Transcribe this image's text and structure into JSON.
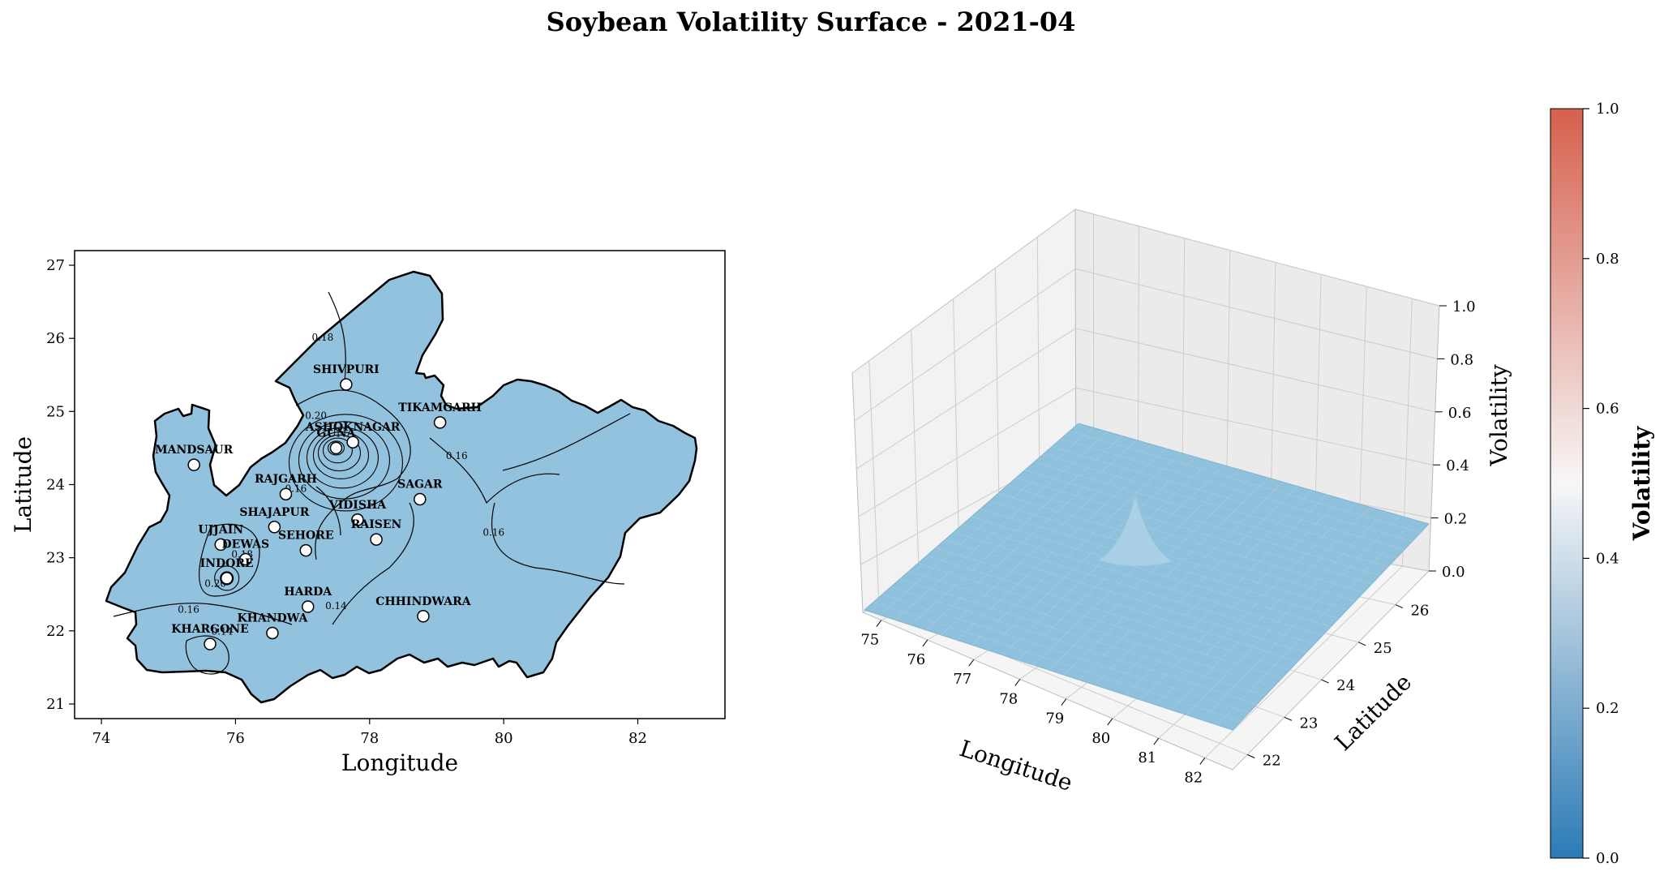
{
  "title": "Soybean Volatility Surface - 2021-04",
  "colors": {
    "cmap_low": "#2c7bb6",
    "cmap_mid": "#f7f7f7",
    "cmap_high": "#d6604d",
    "surface_fill": "#8fc0dc",
    "map_fill": "#92c2de",
    "pane": "#f2f2f2",
    "grid": "#cccccc"
  },
  "chart_data": [
    {
      "type": "contour-map",
      "xlabel": "Longitude",
      "ylabel": "Latitude",
      "xlim": [
        73.6,
        83.3
      ],
      "ylim": [
        20.8,
        27.2
      ],
      "xticks": [
        74,
        76,
        78,
        80,
        82
      ],
      "yticks": [
        21,
        22,
        23,
        24,
        25,
        26,
        27
      ],
      "contour_labels": [
        {
          "text": "0.18",
          "lon": 77.3,
          "lat": 25.97
        },
        {
          "text": "0.20",
          "lon": 77.2,
          "lat": 24.9
        },
        {
          "text": "0.16",
          "lon": 79.3,
          "lat": 24.35
        },
        {
          "text": "0.16",
          "lon": 79.85,
          "lat": 23.3
        },
        {
          "text": "0.16",
          "lon": 76.9,
          "lat": 23.9
        },
        {
          "text": "0.18",
          "lon": 76.1,
          "lat": 23.0
        },
        {
          "text": "0.20",
          "lon": 75.7,
          "lat": 22.6
        },
        {
          "text": "0.16",
          "lon": 75.3,
          "lat": 22.25
        },
        {
          "text": "0.14",
          "lon": 75.8,
          "lat": 21.95
        },
        {
          "text": "0.14",
          "lon": 77.5,
          "lat": 22.3
        }
      ],
      "districts": [
        {
          "name": "SHIVPURI",
          "lon": 77.65,
          "lat": 25.37
        },
        {
          "name": "TIKAMGARH",
          "lon": 79.05,
          "lat": 24.85
        },
        {
          "name": "ASHOKNAGAR",
          "lon": 77.75,
          "lat": 24.58
        },
        {
          "name": "GUNA",
          "lon": 77.5,
          "lat": 24.5
        },
        {
          "name": "MANDSAUR",
          "lon": 75.38,
          "lat": 24.27
        },
        {
          "name": "RAJGARH",
          "lon": 76.75,
          "lat": 23.87
        },
        {
          "name": "SAGAR",
          "lon": 78.75,
          "lat": 23.8
        },
        {
          "name": "VIDISHA",
          "lon": 77.82,
          "lat": 23.52
        },
        {
          "name": "SHAJAPUR",
          "lon": 76.58,
          "lat": 23.42
        },
        {
          "name": "RAISEN",
          "lon": 78.1,
          "lat": 23.25
        },
        {
          "name": "UJJAIN",
          "lon": 75.78,
          "lat": 23.18
        },
        {
          "name": "SEHORE",
          "lon": 77.05,
          "lat": 23.1
        },
        {
          "name": "DEWAS",
          "lon": 76.15,
          "lat": 22.98
        },
        {
          "name": "INDORE",
          "lon": 75.87,
          "lat": 22.72
        },
        {
          "name": "HARDA",
          "lon": 77.08,
          "lat": 22.33
        },
        {
          "name": "CHHINDWARA",
          "lon": 78.8,
          "lat": 22.2
        },
        {
          "name": "KHANDWA",
          "lon": 76.55,
          "lat": 21.97
        },
        {
          "name": "KHARGONE",
          "lon": 75.62,
          "lat": 21.82
        }
      ]
    },
    {
      "type": "surface3d",
      "xlabel": "Longitude",
      "ylabel": "Latitude",
      "zlabel": "Volatility",
      "xticks": [
        75,
        76,
        77,
        78,
        79,
        80,
        81,
        82
      ],
      "yticks": [
        22,
        23,
        24,
        25,
        26
      ],
      "zticks": [
        0.0,
        0.2,
        0.4,
        0.6,
        0.8,
        1.0
      ],
      "zlim": [
        0.0,
        1.0
      ],
      "approx_level": 0.17,
      "peak": {
        "lon": 77.5,
        "lat": 24.5,
        "value": 0.31
      }
    },
    {
      "type": "colorbar",
      "label": "Volatility",
      "range": [
        0.0,
        1.0
      ],
      "ticks": [
        0.0,
        0.2,
        0.4,
        0.6,
        0.8,
        1.0
      ]
    }
  ]
}
